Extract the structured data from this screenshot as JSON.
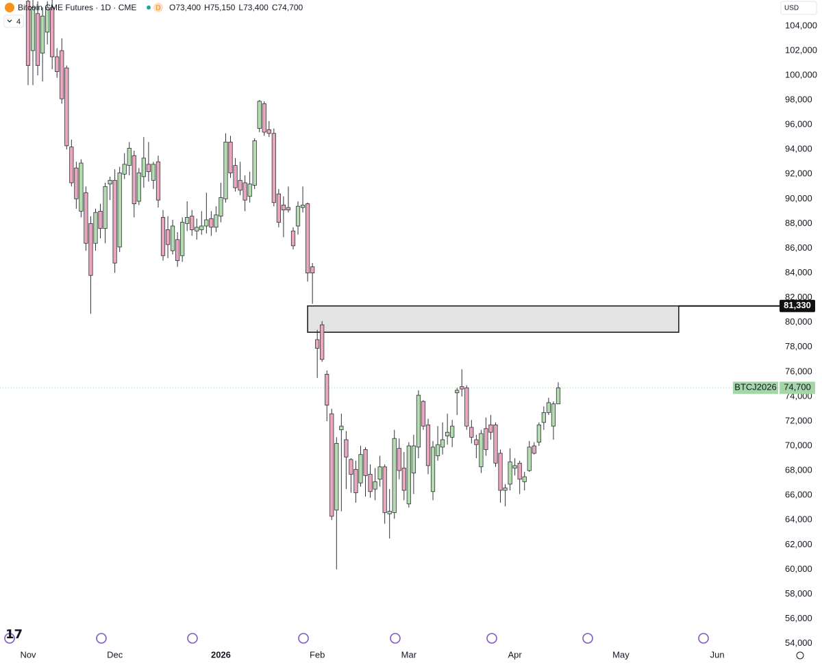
{
  "chart_data": {
    "type": "candlestick",
    "title": "Bitcoin CME Futures · 1D · CME",
    "interval_badge": "D",
    "ohlc_legend": [
      {
        "value": 73400,
        "label": "O73,400"
      },
      {
        "value": 75150,
        "label": "H75,150"
      },
      {
        "value": 73400,
        "label": "L73,400"
      },
      {
        "value": 74700,
        "label": "C74,700"
      }
    ],
    "indicators": 4,
    "currency": "USD",
    "up_color": "#b5dcae",
    "down_color": "#e9a7bb",
    "categories": [
      "Nov",
      null,
      null,
      null,
      null,
      null,
      null,
      null,
      null,
      null,
      null,
      null,
      null,
      null,
      null,
      null,
      null,
      null,
      "Dec",
      null,
      null,
      null,
      null,
      null,
      null,
      null,
      null,
      null,
      null,
      null,
      null,
      null,
      null,
      null,
      null,
      null,
      null,
      null,
      null,
      null,
      "2026",
      null,
      null,
      null,
      null,
      null,
      null,
      null,
      null,
      null,
      null,
      null,
      null,
      null,
      null,
      null,
      null,
      null,
      null,
      null,
      "Feb",
      null,
      null,
      null,
      null,
      null,
      null,
      null,
      null,
      null,
      null,
      null,
      null,
      null,
      null,
      null,
      null,
      null,
      null,
      "Mar",
      null,
      null,
      null,
      null,
      null,
      null,
      null,
      null,
      null,
      null,
      null,
      null,
      null,
      null,
      null,
      null,
      null,
      null,
      null,
      null,
      null,
      "Apr",
      null,
      null,
      null,
      null,
      null,
      null,
      null,
      null,
      null,
      null,
      null,
      null,
      null,
      null,
      null,
      null,
      null,
      null,
      null,
      null,
      null,
      "May",
      null,
      null,
      null,
      null,
      null,
      null,
      null,
      null,
      null,
      null,
      null,
      null,
      null,
      null,
      null,
      null,
      null,
      null,
      null,
      "Jun",
      null,
      null,
      null,
      null,
      null,
      null
    ],
    "open": [
      106000,
      102000,
      105000,
      101800,
      103500,
      105500,
      101500,
      102000,
      100600,
      94200,
      92500,
      89000,
      90500,
      88000,
      86400,
      89000,
      87600,
      91200,
      91500,
      86100,
      92000,
      92700,
      93500,
      89800,
      91800,
      92800,
      91500,
      93000,
      88500,
      87500,
      85800,
      86700,
      85400,
      88000,
      88600,
      87400,
      87500,
      87800,
      88400,
      87700,
      88600,
      90000,
      94600,
      92700,
      91500,
      91300,
      90200,
      91100,
      95700,
      97700,
      95600,
      95300,
      90400,
      89500,
      89300,
      87400,
      87800,
      89300,
      89600,
      84500,
      78600,
      79800,
      75800,
      72600,
      64800,
      71300,
      70500,
      68900,
      68100,
      67000,
      69700,
      67700,
      66500,
      67300,
      68300,
      64500,
      64600,
      69800,
      68200,
      65300,
      67800,
      69900,
      73600,
      71700,
      66300,
      69200,
      69900,
      70800,
      70700,
      74300,
      74800,
      74700,
      71500,
      70500,
      68300,
      71400,
      71700,
      71700,
      69400,
      66400,
      66900,
      68200,
      68600,
      67100,
      68000,
      70000,
      70300,
      71900,
      72700,
      71600,
      73400,
      null,
      null,
      null,
      null,
      null,
      null,
      null,
      null,
      null,
      null,
      null,
      null,
      null,
      null,
      null,
      null,
      null,
      null,
      null,
      null,
      null,
      null,
      null,
      null,
      null,
      null,
      null,
      null,
      null,
      null,
      null,
      null,
      null,
      null,
      null,
      null,
      null,
      null,
      null
    ],
    "high": [
      107000,
      106500,
      106000,
      105500,
      106000,
      106500,
      102200,
      103000,
      100800,
      94800,
      93000,
      93200,
      91000,
      88600,
      89200,
      89600,
      91300,
      91800,
      92400,
      92600,
      93700,
      94600,
      93900,
      92500,
      95000,
      94600,
      93000,
      93500,
      89100,
      88600,
      88300,
      87300,
      88500,
      89800,
      89100,
      88400,
      89000,
      90500,
      89000,
      89400,
      91300,
      95300,
      95100,
      93300,
      93000,
      91900,
      92200,
      94900,
      98000,
      97900,
      96300,
      95700,
      90800,
      90200,
      91000,
      87700,
      89800,
      91000,
      89700,
      84800,
      79400,
      80100,
      76100,
      73000,
      70700,
      72600,
      71200,
      69000,
      68800,
      70000,
      69900,
      68500,
      68200,
      69200,
      68500,
      66500,
      71300,
      70600,
      69500,
      70300,
      70900,
      74500,
      73700,
      72200,
      70400,
      71600,
      71900,
      72600,
      72100,
      74700,
      76200,
      74900,
      72100,
      70900,
      71300,
      72300,
      72500,
      71900,
      69700,
      66900,
      69800,
      69000,
      68800,
      67900,
      70400,
      70300,
      71900,
      73200,
      73900,
      73600,
      75150,
      null,
      null,
      null,
      null,
      null,
      null,
      null,
      null,
      null,
      null,
      null,
      null,
      null,
      null,
      null,
      null,
      null,
      null,
      null,
      null,
      null,
      null,
      null,
      null,
      null,
      null,
      null,
      null,
      null,
      null,
      null,
      null,
      null,
      null,
      null,
      null,
      null,
      null,
      null
    ],
    "low": [
      99200,
      99200,
      100000,
      99500,
      102500,
      100500,
      99800,
      97700,
      94000,
      91000,
      89200,
      88500,
      85800,
      80700,
      85800,
      86800,
      86400,
      89900,
      84000,
      85700,
      91600,
      91900,
      88500,
      89500,
      90900,
      91400,
      90800,
      89300,
      85000,
      85200,
      85500,
      84500,
      84900,
      87400,
      87000,
      86700,
      87100,
      87200,
      87000,
      87300,
      88100,
      89700,
      91700,
      90600,
      90300,
      89000,
      89700,
      90800,
      95400,
      95100,
      95000,
      89400,
      87700,
      86900,
      88900,
      85900,
      87100,
      88900,
      83300,
      81500,
      75500,
      76800,
      72000,
      64000,
      60000,
      64700,
      66500,
      66200,
      65400,
      66700,
      65900,
      65800,
      65600,
      66700,
      63700,
      62500,
      64100,
      67300,
      65600,
      65000,
      66100,
      69000,
      71300,
      67700,
      65600,
      68800,
      69300,
      70100,
      69900,
      72500,
      74000,
      71300,
      70200,
      69000,
      67800,
      69200,
      70500,
      68300,
      65400,
      65100,
      66400,
      67600,
      66100,
      66400,
      67900,
      69300,
      70000,
      71300,
      72500,
      70500,
      73400,
      null,
      null,
      null,
      null,
      null,
      null,
      null,
      null,
      null,
      null,
      null,
      null,
      null,
      null,
      null,
      null,
      null,
      null,
      null,
      null,
      null,
      null,
      null,
      null,
      null,
      null,
      null,
      null,
      null,
      null,
      null,
      null,
      null,
      null,
      null,
      null,
      null,
      null,
      null
    ],
    "close": [
      100800,
      105500,
      100800,
      104800,
      105500,
      101500,
      100300,
      98100,
      94300,
      91300,
      90000,
      92900,
      86400,
      83800,
      88900,
      87600,
      91000,
      91500,
      84800,
      92100,
      92800,
      94100,
      89600,
      92100,
      93300,
      92200,
      92800,
      89900,
      85400,
      86300,
      87800,
      85000,
      88100,
      88500,
      87500,
      87700,
      87800,
      88300,
      87700,
      88700,
      90100,
      94600,
      92100,
      90900,
      90700,
      89900,
      91200,
      94700,
      97900,
      95400,
      95300,
      89700,
      88100,
      89100,
      89100,
      86200,
      89400,
      89500,
      84000,
      84000,
      77900,
      77000,
      73300,
      64300,
      70200,
      71600,
      69100,
      67700,
      66200,
      69300,
      67600,
      66300,
      67100,
      68300,
      64600,
      64700,
      70600,
      68000,
      66400,
      70000,
      70000,
      74100,
      71600,
      68400,
      69900,
      70100,
      70500,
      71100,
      71600,
      74500,
      74600,
      71600,
      70700,
      70100,
      71000,
      69700,
      71100,
      68600,
      66400,
      66600,
      68700,
      68400,
      67300,
      67500,
      69900,
      69400,
      71700,
      72700,
      73500,
      73400,
      74700,
      null,
      null,
      null,
      null,
      null,
      null,
      null,
      null,
      null,
      null,
      null,
      null,
      null,
      null,
      null,
      null,
      null,
      null,
      null,
      null,
      null,
      null,
      null,
      null,
      null,
      null,
      null,
      null,
      null,
      null,
      null,
      null,
      null,
      null,
      null,
      null,
      null,
      null,
      null
    ],
    "ylim": [
      53700,
      106100
    ],
    "yticks": [
      {
        "value": 54000,
        "label": "54,000"
      },
      {
        "value": 56000,
        "label": "56,000"
      },
      {
        "value": 58000,
        "label": "58,000"
      },
      {
        "value": 60000,
        "label": "60,000"
      },
      {
        "value": 62000,
        "label": "62,000"
      },
      {
        "value": 64000,
        "label": "64,000"
      },
      {
        "value": 66000,
        "label": "66,000"
      },
      {
        "value": 68000,
        "label": "68,000"
      },
      {
        "value": 70000,
        "label": "70,000"
      },
      {
        "value": 72000,
        "label": "72,000"
      },
      {
        "value": 74000,
        "label": "74,000"
      },
      {
        "value": 76000,
        "label": "76,000"
      },
      {
        "value": 78000,
        "label": "78,000"
      },
      {
        "value": 80000,
        "label": "80,000"
      },
      {
        "value": 82000,
        "label": "82,000"
      },
      {
        "value": 84000,
        "label": "84,000"
      },
      {
        "value": 86000,
        "label": "86,000"
      },
      {
        "value": 88000,
        "label": "88,000"
      },
      {
        "value": 90000,
        "label": "90,000"
      },
      {
        "value": 92000,
        "label": "92,000"
      },
      {
        "value": 94000,
        "label": "94,000"
      },
      {
        "value": 96000,
        "label": "96,000"
      },
      {
        "value": 98000,
        "label": "98,000"
      },
      {
        "value": 100000,
        "label": "100,000"
      },
      {
        "value": 102000,
        "label": "102,000"
      },
      {
        "value": 104000,
        "label": "104,000"
      }
    ],
    "grid": false,
    "zone": {
      "high": {
        "value": 81330,
        "label": "81,330"
      },
      "low": 79200,
      "x_range": [
        58,
        135
      ]
    },
    "price_line": {
      "symbol": "BTCJ2026",
      "value": 74700,
      "label": "74,700",
      "color": "#a5d6a7"
    }
  }
}
